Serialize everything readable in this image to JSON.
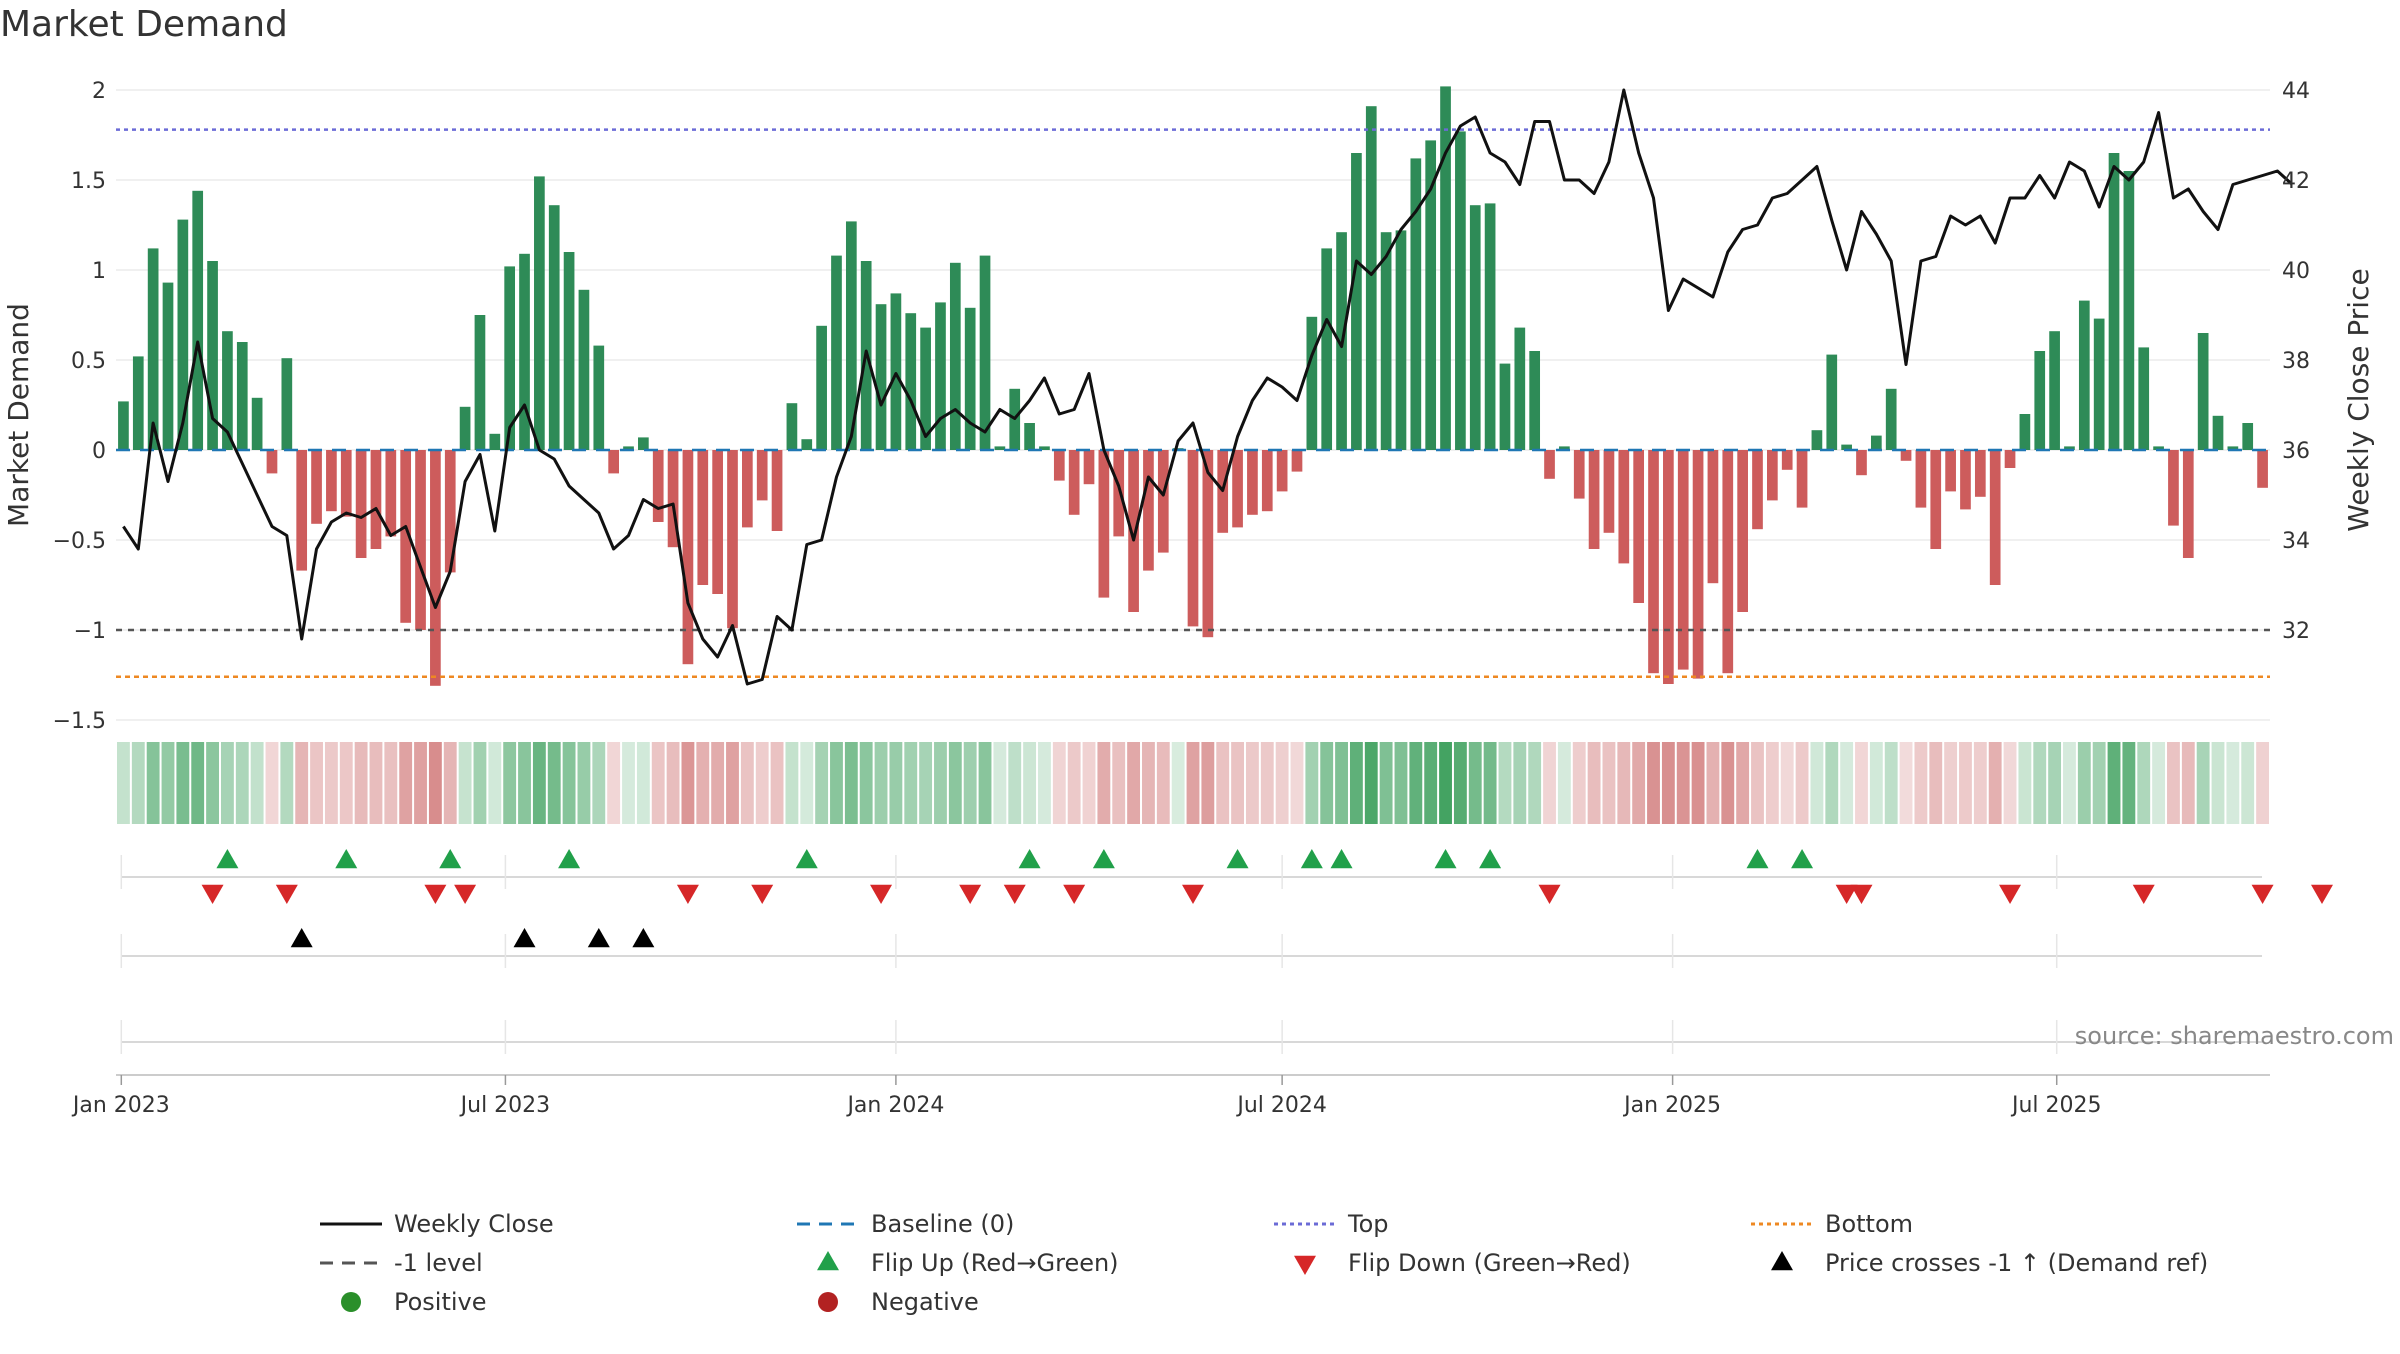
{
  "chart_data": {
    "type": "bar",
    "title": "Market Demand",
    "ylabel": "Market Demand",
    "y2label": "Weekly Close Price",
    "ylim": [
      -1.5,
      2.0
    ],
    "y2lim": [
      30.0,
      44.0
    ],
    "yticks": [
      2,
      1.5,
      1,
      0.5,
      0,
      -0.5,
      -1,
      -1.5
    ],
    "ytick_labels": [
      "2",
      "1.5",
      "1",
      "0.5",
      "0",
      "−0.5",
      "−1",
      "−1.5"
    ],
    "y2ticks": [
      44,
      42,
      40,
      38,
      36,
      34,
      32
    ],
    "x_start": "2023-01-02",
    "week_days": 7,
    "x_ticks": [
      {
        "label": "Jan 2023",
        "date": "2023-01-01"
      },
      {
        "label": "Jul 2023",
        "date": "2023-07-01"
      },
      {
        "label": "Jan 2024",
        "date": "2024-01-01"
      },
      {
        "label": "Jul 2024",
        "date": "2024-07-01"
      },
      {
        "label": "Jan 2025",
        "date": "2025-01-01"
      },
      {
        "label": "Jul 2025",
        "date": "2025-07-01"
      }
    ],
    "reference_lines": {
      "top": 1.78,
      "minus_one": -1.0,
      "bottom": -1.26,
      "baseline": 0
    },
    "demand": [
      0.27,
      0.52,
      1.12,
      0.93,
      1.28,
      1.44,
      1.05,
      0.66,
      0.6,
      0.29,
      -0.13,
      0.51,
      -0.67,
      -0.41,
      -0.34,
      -0.37,
      -0.6,
      -0.55,
      -0.48,
      -0.96,
      -1.0,
      -1.31,
      -0.68,
      0.24,
      0.75,
      0.09,
      1.02,
      1.09,
      1.52,
      1.36,
      1.1,
      0.89,
      0.58,
      -0.13,
      0.02,
      0.07,
      -0.4,
      -0.54,
      -1.19,
      -0.75,
      -0.8,
      -0.99,
      -0.43,
      -0.28,
      -0.45,
      0.26,
      0.06,
      0.69,
      1.08,
      1.27,
      1.05,
      0.81,
      0.87,
      0.76,
      0.68,
      0.82,
      1.04,
      0.79,
      1.08,
      0.02,
      0.34,
      0.15,
      0.02,
      -0.17,
      -0.36,
      -0.19,
      -0.82,
      -0.48,
      -0.9,
      -0.67,
      -0.57,
      0.01,
      -0.98,
      -1.04,
      -0.46,
      -0.43,
      -0.36,
      -0.34,
      -0.23,
      -0.12,
      0.74,
      1.12,
      1.21,
      1.65,
      1.91,
      1.21,
      1.22,
      1.62,
      1.72,
      2.02,
      1.77,
      1.36,
      1.37,
      0.48,
      0.68,
      0.55,
      -0.16,
      0.02,
      -0.27,
      -0.55,
      -0.46,
      -0.63,
      -0.85,
      -1.24,
      -1.3,
      -1.22,
      -1.27,
      -0.74,
      -1.24,
      -0.9,
      -0.44,
      -0.28,
      -0.11,
      -0.32,
      0.11,
      0.53,
      0.03,
      -0.14,
      0.08,
      0.34,
      -0.06,
      -0.32,
      -0.55,
      -0.23,
      -0.33,
      -0.26,
      -0.75,
      -0.1,
      0.2,
      0.55,
      0.66,
      0.02,
      0.83,
      0.73,
      1.65,
      1.55,
      0.57,
      0.02,
      -0.42,
      -0.6,
      0.65,
      0.19,
      0.02,
      0.15,
      -0.21
    ],
    "weekly_close": [
      34.3,
      33.8,
      36.6,
      35.3,
      36.6,
      38.4,
      36.7,
      36.4,
      35.7,
      35.0,
      34.3,
      34.1,
      31.8,
      33.8,
      34.4,
      34.6,
      34.5,
      34.7,
      34.1,
      34.3,
      33.4,
      32.5,
      33.3,
      35.3,
      35.9,
      34.2,
      36.5,
      37.0,
      36.0,
      35.8,
      35.2,
      34.9,
      34.6,
      33.8,
      34.1,
      34.9,
      34.7,
      34.8,
      32.6,
      31.8,
      31.4,
      32.1,
      30.8,
      30.9,
      32.3,
      32.0,
      33.9,
      34.0,
      35.4,
      36.3,
      38.2,
      37.0,
      37.7,
      37.1,
      36.3,
      36.7,
      36.9,
      36.6,
      36.4,
      36.9,
      36.7,
      37.1,
      37.6,
      36.8,
      36.9,
      37.7,
      36.0,
      35.2,
      34.0,
      35.4,
      35.0,
      36.2,
      36.6,
      35.5,
      35.1,
      36.3,
      37.1,
      37.6,
      37.4,
      37.1,
      38.1,
      38.9,
      38.3,
      40.2,
      39.9,
      40.3,
      40.9,
      41.3,
      41.8,
      42.6,
      43.2,
      43.4,
      42.6,
      42.4,
      41.9,
      43.3,
      43.3,
      42.0,
      42.0,
      41.7,
      42.4,
      44.0,
      42.6,
      41.6,
      39.1,
      39.8,
      39.6,
      39.4,
      40.4,
      40.9,
      41.0,
      41.6,
      41.7,
      42.0,
      42.3,
      41.1,
      40.0,
      41.3,
      40.8,
      40.2,
      37.9,
      40.2,
      40.3,
      41.2,
      41.0,
      41.2,
      40.6,
      41.6,
      41.6,
      42.1,
      41.6,
      42.4,
      42.2,
      41.4,
      42.3,
      42.0,
      42.4,
      43.5,
      41.6,
      41.8,
      41.3,
      40.9,
      41.9,
      42.0,
      42.1,
      42.2,
      41.9
    ],
    "heat_strip": {
      "positive": "#3a9e5a",
      "negative": "#c65a5a"
    },
    "markers": {
      "flip_up": [
        7,
        15,
        22,
        30,
        46,
        61,
        66,
        75,
        80,
        82,
        89,
        92,
        110,
        113
      ],
      "flip_down": [
        6,
        11,
        21,
        23,
        38,
        43,
        51,
        57,
        60,
        64,
        72,
        96,
        116,
        117,
        127,
        136,
        144,
        148
      ],
      "price_crosses": [
        12,
        27,
        32,
        35
      ]
    },
    "colors": {
      "positive_bar": "#2e8b57",
      "negative_bar": "#cd5c5c",
      "close_line": "#111111",
      "baseline": "#1f77b4",
      "top": "#6b6bd6",
      "minus_one": "#555555",
      "bottom": "#ee8822",
      "flip_up": "#21a04a",
      "flip_down": "#d62728",
      "price_cross": "#000000",
      "positive_dot": "#2a8f2a",
      "negative_dot": "#b22222"
    },
    "legend": [
      {
        "label": "Weekly Close",
        "kind": "line",
        "color": "#111111"
      },
      {
        "label": "Baseline (0)",
        "kind": "dashed",
        "color": "#1f77b4"
      },
      {
        "label": "Top",
        "kind": "dotted",
        "color": "#6b6bd6"
      },
      {
        "label": "Bottom",
        "kind": "dotted",
        "color": "#ee8822"
      },
      {
        "label": "-1 level",
        "kind": "dashed",
        "color": "#555555"
      },
      {
        "label": "Flip Up (Red→Green)",
        "kind": "tri-up",
        "color": "#21a04a"
      },
      {
        "label": "Flip Down (Green→Red)",
        "kind": "tri-down",
        "color": "#d62728"
      },
      {
        "label": "Price crosses -1 ↑ (Demand ref)",
        "kind": "tri-up",
        "color": "#000000"
      },
      {
        "label": "Positive",
        "kind": "dot",
        "color": "#2a8f2a"
      },
      {
        "label": "Negative",
        "kind": "dot",
        "color": "#b22222"
      }
    ],
    "source": "source: sharemaestro.com"
  }
}
